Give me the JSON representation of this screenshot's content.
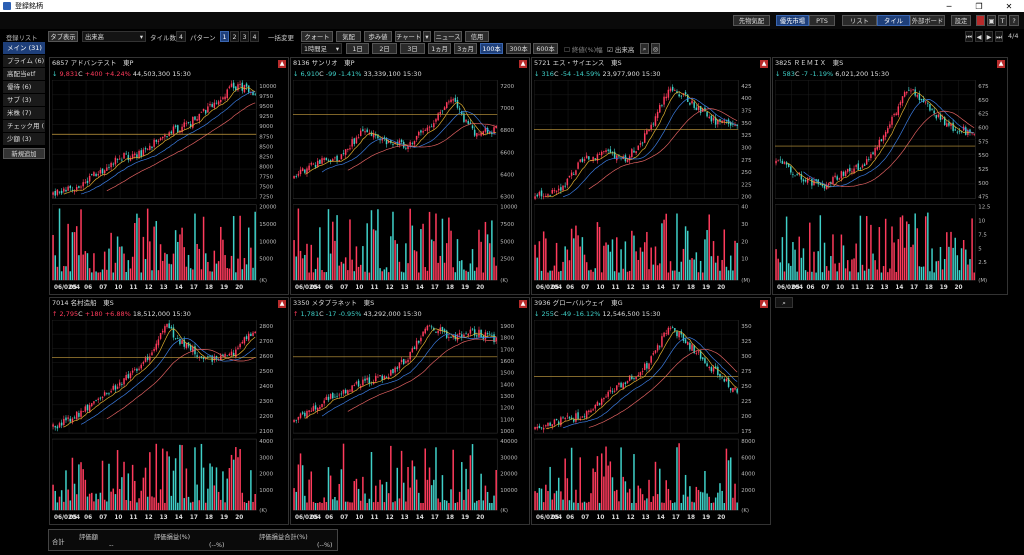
{
  "window": {
    "title": "登録銘柄"
  },
  "toolbar_top": {
    "sakimono": "先物気配",
    "yusen": "優先市場",
    "pts": "PTS",
    "list": "リスト",
    "tile": "タイル",
    "board": "外部ボード",
    "settings": "設定"
  },
  "toolbar": {
    "tab_display": "タブ表示",
    "display_select": "出来高",
    "tile_count_label": "タイル数",
    "tile_count": "4",
    "pattern_label": "パターン",
    "patterns": [
      "1",
      "2",
      "3",
      "4"
    ],
    "bulk_change": "一括変更",
    "btn_quote": "クォート",
    "btn_kehai": "気配",
    "btn_ayumi": "歩み値",
    "btn_chart": "チャート",
    "btn_news": "ニュース",
    "btn_shinyo": "信用",
    "period_select": "1時間足",
    "ranges": [
      "1日",
      "2日",
      "3日",
      "1ヵ月",
      "3ヵ月"
    ],
    "counts": [
      "100本",
      "300本",
      "600本"
    ],
    "chk_close": "終値(%)幅",
    "chk_volume": "出来高",
    "page": "4/4"
  },
  "sidebar": {
    "header": "登録リスト",
    "items": [
      "メイン (31)",
      "プライム (6)",
      "高配当etf",
      "優待 (6)",
      "サブ (3)",
      "米株 (7)",
      "チェック用 (",
      "少額 (3)"
    ],
    "add_button": "新規追加"
  },
  "panels": [
    {
      "code": "6857",
      "name": "アドバンテスト",
      "market": "東P",
      "dir": "↓",
      "price": "9,831",
      "flag": "C",
      "change": "+400",
      "pct": "+4.24%",
      "volume": "44,503,300",
      "time": "15:30",
      "trend": "up",
      "y_ticks": [
        "10000",
        "9750",
        "9500",
        "9250",
        "9000",
        "8750",
        "8500",
        "8250",
        "8000",
        "7750",
        "7500",
        "7250"
      ],
      "vol_ticks": [
        "20000",
        "15000",
        "10000",
        "5000"
      ],
      "vol_unit": "(K)",
      "x_ticks": [
        "06/0204",
        "05",
        "06",
        "07",
        "10",
        "11",
        "12",
        "13",
        "14",
        "17",
        "18",
        "19",
        "20"
      ],
      "seed": 1,
      "shape": [
        0.05,
        0.08,
        0.22,
        0.35,
        0.38,
        0.55,
        0.62,
        0.78,
        0.95,
        0.9
      ]
    },
    {
      "code": "8136",
      "name": "サンリオ",
      "market": "東P",
      "dir": "↓",
      "price": "6,910",
      "flag": "C",
      "change": "-99",
      "pct": "-1.41%",
      "volume": "33,339,100",
      "time": "15:30",
      "trend": "down",
      "y_ticks": [
        "7200",
        "7000",
        "6800",
        "6600",
        "6400",
        "6300"
      ],
      "vol_ticks": [
        "10000",
        "7500",
        "5000",
        "2500"
      ],
      "vol_unit": "(K)",
      "x_ticks": [
        "06/0204",
        "05",
        "06",
        "07",
        "10",
        "11",
        "12",
        "13",
        "14",
        "17",
        "18",
        "19",
        "20"
      ],
      "seed": 2,
      "shape": [
        0.2,
        0.3,
        0.35,
        0.55,
        0.5,
        0.45,
        0.6,
        0.85,
        0.55,
        0.58
      ]
    },
    {
      "code": "5721",
      "name": "エス・サイエンス",
      "market": "東S",
      "dir": "↓",
      "price": "316",
      "flag": "C",
      "change": "-54",
      "pct": "-14.59%",
      "volume": "23,977,900",
      "time": "15:30",
      "trend": "down",
      "y_ticks": [
        "425",
        "400",
        "375",
        "350",
        "325",
        "300",
        "275",
        "250",
        "225",
        "200"
      ],
      "vol_ticks": [
        "40",
        "30",
        "20",
        "10"
      ],
      "vol_unit": "(M)",
      "x_ticks": [
        "06/0204",
        "05",
        "06",
        "07",
        "10",
        "11",
        "12",
        "13",
        "14",
        "17",
        "18",
        "19",
        "20"
      ],
      "seed": 3,
      "shape": [
        0.02,
        0.05,
        0.3,
        0.4,
        0.32,
        0.55,
        0.95,
        0.8,
        0.65,
        0.6
      ]
    },
    {
      "code": "3825",
      "name": "ＲＥＭＩＸ",
      "market": "東S",
      "dir": "↓",
      "price": "583",
      "flag": "C",
      "change": "-7",
      "pct": "-1.19%",
      "volume": "6,021,200",
      "time": "15:30",
      "trend": "down",
      "y_ticks": [
        "675",
        "650",
        "625",
        "600",
        "575",
        "550",
        "525",
        "500",
        "475"
      ],
      "vol_ticks": [
        "12.5",
        "10",
        "7.5",
        "5",
        "2.5"
      ],
      "vol_unit": "(M)",
      "x_ticks": [
        "06/0204",
        "05",
        "06",
        "07",
        "10",
        "11",
        "12",
        "13",
        "14",
        "17",
        "18",
        "19",
        "20"
      ],
      "seed": 4,
      "shape": [
        0.35,
        0.2,
        0.1,
        0.2,
        0.3,
        0.55,
        0.95,
        0.75,
        0.6,
        0.55
      ]
    },
    {
      "code": "7014",
      "name": "名村造船",
      "market": "東S",
      "dir": "↑",
      "price": "2,795",
      "flag": "C",
      "change": "+180",
      "pct": "+6.88%",
      "volume": "18,512,000",
      "time": "15:30",
      "trend": "up",
      "y_ticks": [
        "2800",
        "2700",
        "2600",
        "2500",
        "2400",
        "2300",
        "2200",
        "2100"
      ],
      "vol_ticks": [
        "4000",
        "3000",
        "2000",
        "1000"
      ],
      "vol_unit": "(K)",
      "x_ticks": [
        "06/0204",
        "05",
        "06",
        "07",
        "10",
        "11",
        "12",
        "13",
        "14",
        "17",
        "18",
        "19",
        "20"
      ],
      "seed": 5,
      "shape": [
        0.05,
        0.15,
        0.3,
        0.45,
        0.6,
        0.95,
        0.75,
        0.65,
        0.7,
        0.92
      ]
    },
    {
      "code": "3350",
      "name": "メタプラネット",
      "market": "東S",
      "dir": "↑",
      "price": "1,781",
      "flag": "C",
      "change": "-17",
      "pct": "-0.95%",
      "volume": "43,292,000",
      "time": "15:30",
      "trend": "down",
      "y_ticks": [
        "1900",
        "1800",
        "1700",
        "1600",
        "1500",
        "1400",
        "1300",
        "1200",
        "1100",
        "1000"
      ],
      "vol_ticks": [
        "40000",
        "30000",
        "20000",
        "10000"
      ],
      "vol_unit": "(K)",
      "x_ticks": [
        "06/0204",
        "05",
        "06",
        "07",
        "10",
        "11",
        "12",
        "13",
        "14",
        "17",
        "18",
        "19",
        "20"
      ],
      "seed": 6,
      "shape": [
        0.1,
        0.25,
        0.35,
        0.45,
        0.5,
        0.65,
        0.95,
        0.85,
        0.9,
        0.82
      ]
    },
    {
      "code": "3936",
      "name": "グローバルウェイ",
      "market": "東G",
      "dir": "↓",
      "price": "255",
      "flag": "C",
      "change": "-49",
      "pct": "-16.12%",
      "volume": "12,546,500",
      "time": "15:30",
      "trend": "down",
      "y_ticks": [
        "350",
        "325",
        "300",
        "275",
        "250",
        "225",
        "200",
        "175"
      ],
      "vol_ticks": [
        "8000",
        "6000",
        "4000",
        "2000"
      ],
      "vol_unit": "(K)",
      "x_ticks": [
        "06/0204",
        "05",
        "06",
        "07",
        "10",
        "11",
        "12",
        "13",
        "14",
        "17",
        "18",
        "19",
        "20"
      ],
      "seed": 7,
      "shape": [
        0.05,
        0.1,
        0.15,
        0.3,
        0.45,
        0.6,
        0.95,
        0.75,
        0.55,
        0.35
      ]
    }
  ],
  "footer": {
    "total": "合計",
    "col1": "評価額",
    "col2": "評価損益(%)",
    "col3": "評価損益合計(%)",
    "v1": "--",
    "v2": "(--%)",
    "v3": "(--%)"
  },
  "colors": {
    "up": "#ff3b5c",
    "down": "#3fd0c8",
    "accent": "#1e3f7a"
  }
}
